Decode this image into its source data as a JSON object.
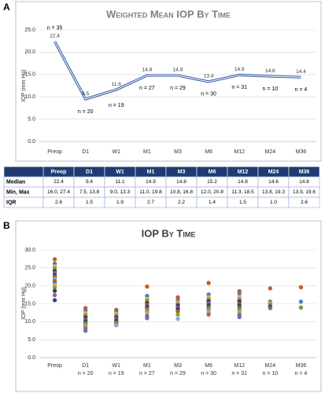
{
  "chart_data": [
    {
      "type": "line",
      "panel_label": "A",
      "title": "Weighted Mean IOP By Time",
      "y_label": "IOP (mm Hg)",
      "categories": [
        "Preop",
        "D1",
        "W1",
        "M1",
        "M3",
        "M6",
        "M12",
        "M24",
        "M36"
      ],
      "values": [
        22.4,
        9.5,
        11.6,
        14.8,
        14.8,
        13.4,
        14.9,
        14.6,
        14.4
      ],
      "n_labels": [
        "n = 35",
        "n = 20",
        "n = 19",
        "n = 27",
        "n = 29",
        "n = 30",
        "n = 31",
        "n = 10",
        "n = 4"
      ],
      "color": "#2e5aa8",
      "grid": true,
      "ylim": [
        0,
        25
      ],
      "yticks": [
        {
          "value": 0,
          "label": "0.0"
        },
        {
          "value": 5,
          "label": "5.0"
        },
        {
          "value": 10,
          "label": "10.0"
        },
        {
          "value": 15,
          "label": "15.0"
        },
        {
          "value": 20,
          "label": "20.0"
        },
        {
          "value": 25,
          "label": "25.0"
        }
      ]
    },
    {
      "type": "strip",
      "panel_label": "B",
      "title": "IOP By Time",
      "y_label": "IOP (mm Hg)",
      "categories": [
        "Preop",
        "D1",
        "W1",
        "M1",
        "M3",
        "M6",
        "M12",
        "M24",
        "M36"
      ],
      "n_labels": [
        null,
        "n = 20",
        "n = 19",
        "n = 27",
        "n = 29",
        "n = 30",
        "n = 31",
        "n = 10",
        "n = 4"
      ],
      "values": [
        [
          27.4,
          26.2,
          25.5,
          24.8,
          24.1,
          23.6,
          23.0,
          22.6,
          22.2,
          21.8,
          21.3,
          20.8,
          20.2,
          19.5,
          18.6,
          17.4,
          16.0
        ],
        [
          13.8,
          13.1,
          12.4,
          11.8,
          11.2,
          10.6,
          10.1,
          9.6,
          9.2,
          8.7,
          8.2,
          7.5
        ],
        [
          13.3,
          12.8,
          12.2,
          11.7,
          11.2,
          10.8,
          10.3,
          9.8,
          9.3,
          9.0
        ],
        [
          19.8,
          17.2,
          16.4,
          15.8,
          15.2,
          14.7,
          14.2,
          13.6,
          13.0,
          12.4,
          11.6,
          11.0
        ],
        [
          16.8,
          16.0,
          15.4,
          14.9,
          14.5,
          14.0,
          13.5,
          12.9,
          12.0,
          10.8
        ],
        [
          20.8,
          17.6,
          16.8,
          16.2,
          15.7,
          15.2,
          14.6,
          14.0,
          13.4,
          12.6,
          12.0
        ],
        [
          18.5,
          17.8,
          16.9,
          16.2,
          15.6,
          15.0,
          14.5,
          13.9,
          13.2,
          12.6,
          11.9,
          11.3
        ],
        [
          19.3,
          15.6,
          15.2,
          14.8,
          14.2,
          13.8
        ],
        [
          19.6,
          15.6,
          14.0,
          13.9
        ]
      ],
      "colors": [
        "#e0502a",
        "#4a7fc9",
        "#f2b134",
        "#6aa84f",
        "#3d3d3d",
        "#9b59b6",
        "#1f4e79",
        "#c55a11",
        "#70ad47",
        "#8faadc"
      ],
      "grid": true,
      "ylim": [
        0,
        30
      ],
      "yticks": [
        {
          "value": 0,
          "label": "0.0"
        },
        {
          "value": 5,
          "label": "5.0"
        },
        {
          "value": 10,
          "label": "10.0"
        },
        {
          "value": 15,
          "label": "15.0"
        },
        {
          "value": 20,
          "label": "20.0"
        },
        {
          "value": 25,
          "label": "25.0"
        },
        {
          "value": 30,
          "label": "30.0"
        }
      ]
    }
  ],
  "table": {
    "columns": [
      "Preop",
      "D1",
      "W1",
      "M1",
      "M3",
      "M6",
      "M12",
      "M24",
      "M36"
    ],
    "rows": [
      {
        "label": "Median",
        "values": [
          "22.4",
          "9.4",
          "11.1",
          "14.9",
          "14.8",
          "15.2",
          "14.8",
          "14.6",
          "14.8"
        ]
      },
      {
        "label": "Min, Max",
        "values": [
          "16.0, 27.4",
          "7.5, 13.8",
          "9.0, 13.3",
          "11.0, 19.8",
          "10.8, 16.8",
          "12.0, 20.8",
          "11.3, 18.5",
          "13.8, 19.3",
          "13.9, 19.6"
        ]
      },
      {
        "label": "IQR",
        "values": [
          "2.6",
          "1.5",
          "1.9",
          "2.7",
          "2.2",
          "1.4",
          "1.5",
          "1.0",
          "2.6"
        ]
      }
    ]
  }
}
